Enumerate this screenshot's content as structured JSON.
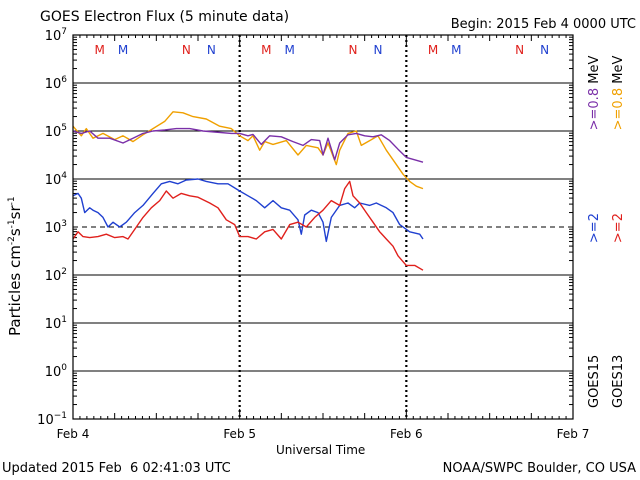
{
  "chart_data": {
    "type": "line",
    "title": "GOES Electron Flux (5 minute data)",
    "begin_label": "Begin: 2015 Feb 4 0000 UTC",
    "xlabel": "Universal Time",
    "ylabel": {
      "base": "Particles cm",
      "e1": "-2",
      "s": "s",
      "e2": "-1",
      "sr": "sr",
      "e3": "-1"
    },
    "x_range_days": [
      0,
      3
    ],
    "x_ticks": [
      {
        "day": 0,
        "label": "Feb 4"
      },
      {
        "day": 1,
        "label": "Feb 5"
      },
      {
        "day": 2,
        "label": "Feb 6"
      },
      {
        "day": 3,
        "label": "Feb 7"
      }
    ],
    "y_log_range": [
      -1,
      7
    ],
    "y_tick_exponents": [
      -1,
      0,
      1,
      2,
      3,
      4,
      5,
      6,
      7
    ],
    "threshold_exponent": 3,
    "marks": [
      {
        "label": "M",
        "day": 0.16,
        "color": "#e0201c"
      },
      {
        "label": "M",
        "day": 0.3,
        "color": "#2040d0"
      },
      {
        "label": "N",
        "day": 0.68,
        "color": "#e0201c"
      },
      {
        "label": "N",
        "day": 0.83,
        "color": "#2040d0"
      },
      {
        "label": "M",
        "day": 1.16,
        "color": "#e0201c"
      },
      {
        "label": "M",
        "day": 1.3,
        "color": "#2040d0"
      },
      {
        "label": "N",
        "day": 1.68,
        "color": "#e0201c"
      },
      {
        "label": "N",
        "day": 1.83,
        "color": "#2040d0"
      },
      {
        "label": "M",
        "day": 2.16,
        "color": "#e0201c"
      },
      {
        "label": "M",
        "day": 2.3,
        "color": "#2040d0"
      },
      {
        "label": "N",
        "day": 2.68,
        "color": "#e0201c"
      },
      {
        "label": "N",
        "day": 2.83,
        "color": "#2040d0"
      }
    ],
    "series": [
      {
        "name": "GOES13 >=0.8 MeV",
        "color": "#f0a000",
        "points": [
          [
            0.0,
            5.1
          ],
          [
            0.05,
            4.9
          ],
          [
            0.08,
            5.05
          ],
          [
            0.12,
            4.85
          ],
          [
            0.18,
            4.95
          ],
          [
            0.25,
            4.82
          ],
          [
            0.3,
            4.9
          ],
          [
            0.36,
            4.78
          ],
          [
            0.42,
            4.92
          ],
          [
            0.48,
            5.05
          ],
          [
            0.55,
            5.2
          ],
          [
            0.6,
            5.4
          ],
          [
            0.66,
            5.38
          ],
          [
            0.72,
            5.3
          ],
          [
            0.8,
            5.25
          ],
          [
            0.88,
            5.1
          ],
          [
            0.95,
            5.05
          ],
          [
            1.0,
            4.9
          ],
          [
            1.05,
            4.8
          ],
          [
            1.08,
            4.9
          ],
          [
            1.12,
            4.6
          ],
          [
            1.15,
            4.78
          ],
          [
            1.2,
            4.72
          ],
          [
            1.28,
            4.8
          ],
          [
            1.35,
            4.5
          ],
          [
            1.4,
            4.7
          ],
          [
            1.47,
            4.65
          ],
          [
            1.5,
            4.5
          ],
          [
            1.53,
            4.75
          ],
          [
            1.58,
            4.3
          ],
          [
            1.6,
            4.6
          ],
          [
            1.65,
            4.95
          ],
          [
            1.7,
            5.0
          ],
          [
            1.73,
            4.7
          ],
          [
            1.78,
            4.8
          ],
          [
            1.83,
            4.9
          ],
          [
            1.88,
            4.6
          ],
          [
            1.93,
            4.35
          ],
          [
            1.98,
            4.1
          ],
          [
            2.02,
            3.95
          ],
          [
            2.06,
            3.85
          ],
          [
            2.1,
            3.8
          ]
        ]
      },
      {
        "name": "GOES15 >=0.8 MeV",
        "color": "#7a2fa8",
        "points": [
          [
            0.0,
            5.0
          ],
          [
            0.05,
            4.95
          ],
          [
            0.1,
            5.0
          ],
          [
            0.15,
            4.85
          ],
          [
            0.22,
            4.85
          ],
          [
            0.3,
            4.75
          ],
          [
            0.36,
            4.85
          ],
          [
            0.42,
            4.95
          ],
          [
            0.48,
            5.0
          ],
          [
            0.55,
            5.02
          ],
          [
            0.62,
            5.05
          ],
          [
            0.7,
            5.05
          ],
          [
            0.78,
            5.0
          ],
          [
            0.85,
            4.98
          ],
          [
            0.95,
            4.95
          ],
          [
            1.0,
            4.95
          ],
          [
            1.05,
            4.9
          ],
          [
            1.08,
            4.93
          ],
          [
            1.13,
            4.72
          ],
          [
            1.18,
            4.9
          ],
          [
            1.25,
            4.88
          ],
          [
            1.32,
            4.78
          ],
          [
            1.38,
            4.7
          ],
          [
            1.43,
            4.82
          ],
          [
            1.48,
            4.8
          ],
          [
            1.5,
            4.5
          ],
          [
            1.53,
            4.85
          ],
          [
            1.57,
            4.4
          ],
          [
            1.6,
            4.75
          ],
          [
            1.65,
            4.92
          ],
          [
            1.7,
            4.95
          ],
          [
            1.75,
            4.9
          ],
          [
            1.8,
            4.88
          ],
          [
            1.85,
            4.92
          ],
          [
            1.9,
            4.8
          ],
          [
            1.95,
            4.62
          ],
          [
            2.0,
            4.45
          ],
          [
            2.05,
            4.4
          ],
          [
            2.1,
            4.35
          ]
        ]
      },
      {
        "name": "GOES15 >=2 MeV",
        "color": "#2040d0",
        "points": [
          [
            0.0,
            3.65
          ],
          [
            0.03,
            3.7
          ],
          [
            0.05,
            3.6
          ],
          [
            0.07,
            3.3
          ],
          [
            0.1,
            3.4
          ],
          [
            0.12,
            3.35
          ],
          [
            0.15,
            3.3
          ],
          [
            0.18,
            3.2
          ],
          [
            0.21,
            3.0
          ],
          [
            0.24,
            3.1
          ],
          [
            0.28,
            3.0
          ],
          [
            0.32,
            3.1
          ],
          [
            0.37,
            3.3
          ],
          [
            0.42,
            3.45
          ],
          [
            0.48,
            3.7
          ],
          [
            0.53,
            3.9
          ],
          [
            0.58,
            3.95
          ],
          [
            0.63,
            3.9
          ],
          [
            0.68,
            3.98
          ],
          [
            0.75,
            4.0
          ],
          [
            0.8,
            3.95
          ],
          [
            0.87,
            3.9
          ],
          [
            0.93,
            3.9
          ],
          [
            1.0,
            3.75
          ],
          [
            1.05,
            3.65
          ],
          [
            1.1,
            3.55
          ],
          [
            1.15,
            3.4
          ],
          [
            1.2,
            3.55
          ],
          [
            1.25,
            3.4
          ],
          [
            1.3,
            3.35
          ],
          [
            1.35,
            3.15
          ],
          [
            1.37,
            2.85
          ],
          [
            1.39,
            3.25
          ],
          [
            1.43,
            3.35
          ],
          [
            1.47,
            3.3
          ],
          [
            1.5,
            3.1
          ],
          [
            1.52,
            2.7
          ],
          [
            1.55,
            3.2
          ],
          [
            1.6,
            3.45
          ],
          [
            1.65,
            3.5
          ],
          [
            1.69,
            3.4
          ],
          [
            1.72,
            3.5
          ],
          [
            1.78,
            3.45
          ],
          [
            1.82,
            3.5
          ],
          [
            1.88,
            3.4
          ],
          [
            1.92,
            3.3
          ],
          [
            1.96,
            3.05
          ],
          [
            2.02,
            2.9
          ],
          [
            2.08,
            2.85
          ],
          [
            2.1,
            2.75
          ]
        ]
      },
      {
        "name": "GOES13 >=2 MeV",
        "color": "#e0201c",
        "points": [
          [
            0.0,
            2.75
          ],
          [
            0.03,
            2.9
          ],
          [
            0.06,
            2.8
          ],
          [
            0.1,
            2.78
          ],
          [
            0.15,
            2.8
          ],
          [
            0.2,
            2.85
          ],
          [
            0.25,
            2.78
          ],
          [
            0.3,
            2.8
          ],
          [
            0.33,
            2.75
          ],
          [
            0.37,
            2.95
          ],
          [
            0.42,
            3.2
          ],
          [
            0.47,
            3.4
          ],
          [
            0.52,
            3.55
          ],
          [
            0.56,
            3.75
          ],
          [
            0.6,
            3.6
          ],
          [
            0.65,
            3.7
          ],
          [
            0.7,
            3.65
          ],
          [
            0.75,
            3.62
          ],
          [
            0.82,
            3.5
          ],
          [
            0.87,
            3.4
          ],
          [
            0.92,
            3.15
          ],
          [
            0.97,
            3.05
          ],
          [
            1.0,
            2.8
          ],
          [
            1.05,
            2.8
          ],
          [
            1.1,
            2.75
          ],
          [
            1.15,
            2.9
          ],
          [
            1.2,
            2.95
          ],
          [
            1.25,
            2.75
          ],
          [
            1.3,
            3.05
          ],
          [
            1.35,
            3.1
          ],
          [
            1.4,
            3.0
          ],
          [
            1.45,
            3.2
          ],
          [
            1.5,
            3.35
          ],
          [
            1.55,
            3.55
          ],
          [
            1.6,
            3.45
          ],
          [
            1.63,
            3.8
          ],
          [
            1.66,
            3.95
          ],
          [
            1.68,
            3.65
          ],
          [
            1.72,
            3.5
          ],
          [
            1.76,
            3.3
          ],
          [
            1.8,
            3.1
          ],
          [
            1.84,
            2.9
          ],
          [
            1.88,
            2.75
          ],
          [
            1.92,
            2.6
          ],
          [
            1.95,
            2.4
          ],
          [
            2.0,
            2.2
          ],
          [
            2.05,
            2.2
          ],
          [
            2.1,
            2.1
          ]
        ]
      }
    ],
    "right_labels": [
      {
        "sat": "GOES15",
        "lo": ">=2",
        "hi": ">=0.8",
        "unit": "MeV",
        "lo_color": "#2040d0",
        "hi_color": "#7a2fa8"
      },
      {
        "sat": "GOES13",
        "lo": ">=2",
        "hi": ">=0.8",
        "unit": "MeV",
        "lo_color": "#e0201c",
        "hi_color": "#f0a000"
      }
    ]
  },
  "footer": {
    "updated": "Updated 2015 Feb  6 02:41:03 UTC",
    "source": "NOAA/SWPC Boulder, CO USA"
  }
}
